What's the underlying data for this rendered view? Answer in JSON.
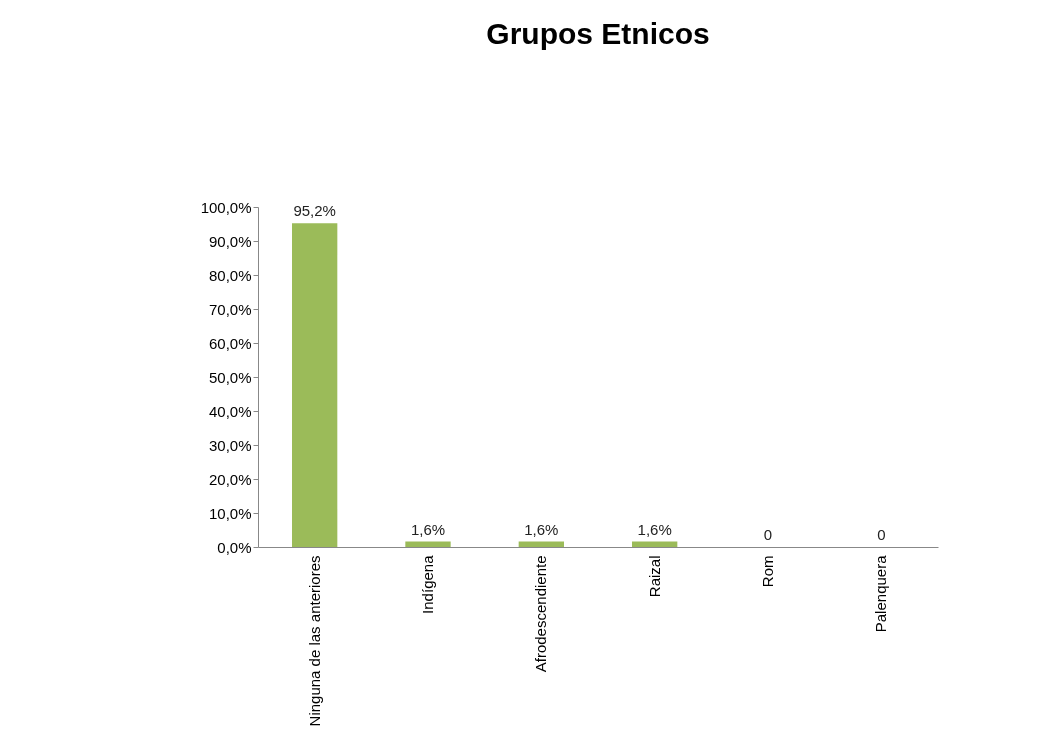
{
  "chart_data": {
    "type": "bar",
    "title": "Grupos Etnicos",
    "categories": [
      "Ninguna de las anteriores",
      "Indígena",
      "Afrodescendiente",
      "Raizal",
      "Rom",
      "Palenquera"
    ],
    "values": [
      95.2,
      1.6,
      1.6,
      1.6,
      0,
      0
    ],
    "value_labels": [
      "95,2%",
      "1,6%",
      "1,6%",
      "1,6%",
      "0",
      "0"
    ],
    "color": "#9bbb59",
    "ylim": [
      0,
      100
    ],
    "yticks": [
      {
        "value": 0,
        "label": "0,0%"
      },
      {
        "value": 10,
        "label": "10,0%"
      },
      {
        "value": 20,
        "label": "20,0%"
      },
      {
        "value": 30,
        "label": "30,0%"
      },
      {
        "value": 40,
        "label": "40,0%"
      },
      {
        "value": 50,
        "label": "50,0%"
      },
      {
        "value": 60,
        "label": "60,0%"
      },
      {
        "value": 70,
        "label": "70,0%"
      },
      {
        "value": 80,
        "label": "80,0%"
      },
      {
        "value": 90,
        "label": "90,0%"
      },
      {
        "value": 100,
        "label": "100,0%"
      }
    ],
    "grid": false
  }
}
